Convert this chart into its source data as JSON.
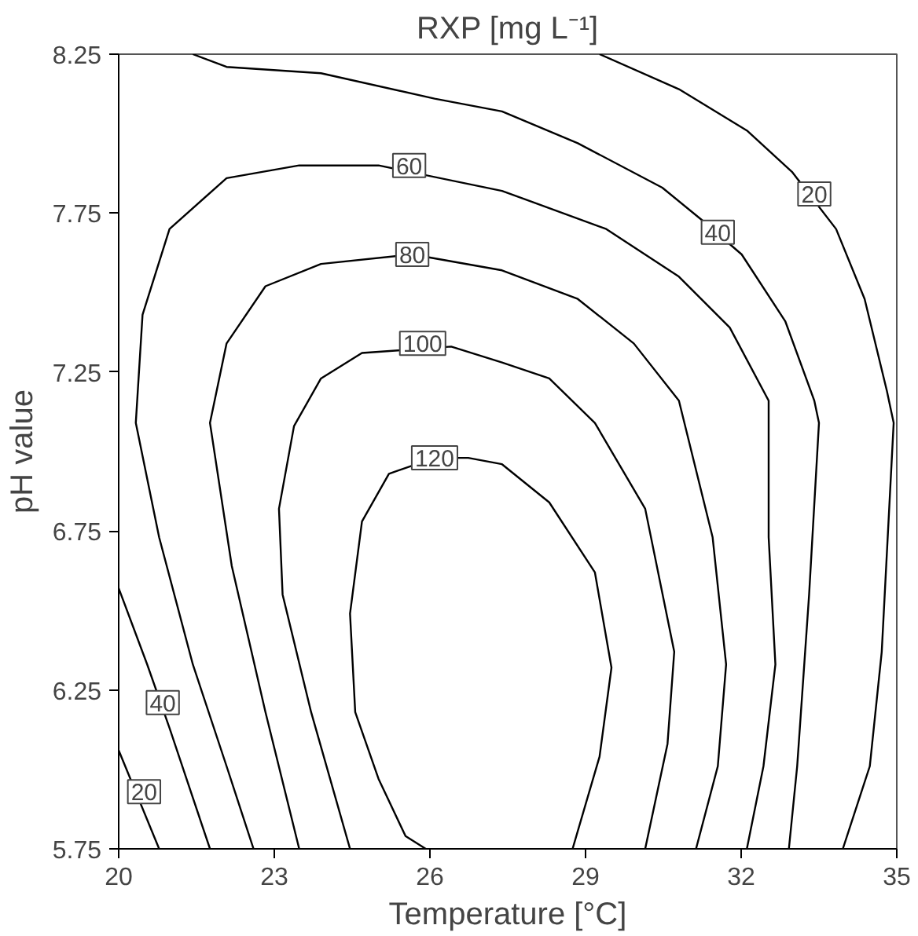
{
  "chart_data": {
    "type": "line",
    "title": "RXP [mg L⁻¹]",
    "xlabel": "Temperature [°C]",
    "ylabel": "pH value",
    "xlim": [
      20,
      35
    ],
    "ylim": [
      5.75,
      8.25
    ],
    "xticks": [
      20,
      23,
      26,
      29,
      32,
      35
    ],
    "yticks": [
      5.75,
      6.25,
      6.75,
      7.25,
      7.75,
      8.25
    ],
    "grid": false,
    "series": [
      {
        "color": "#000000",
        "x": [
          25.92,
          25.53,
          25.01,
          24.56,
          24.46,
          24.69,
          25.21,
          26.09,
          26.74,
          27.39,
          28.3,
          29.18,
          29.5,
          29.27,
          28.75
        ],
        "values": [
          5.75,
          5.79,
          5.97,
          6.18,
          6.49,
          6.78,
          6.93,
          6.98,
          6.98,
          6.96,
          6.84,
          6.62,
          6.32,
          6.04,
          5.75
        ]
      },
      {
        "color": "#000000",
        "x": [
          24.46,
          23.71,
          23.16,
          23.09,
          23.38,
          23.9,
          24.69,
          26.41,
          27.39,
          28.3,
          29.18,
          30.15,
          30.71,
          30.58,
          30.15
        ],
        "values": [
          5.75,
          6.18,
          6.55,
          6.82,
          7.08,
          7.23,
          7.31,
          7.33,
          7.28,
          7.23,
          7.09,
          6.82,
          6.37,
          6.08,
          5.75
        ]
      },
      {
        "color": "#000000",
        "x": [
          23.48,
          22.83,
          22.18,
          21.76,
          22.08,
          22.83,
          23.9,
          25.66,
          27.39,
          28.85,
          29.93,
          30.8,
          31.45,
          31.71,
          31.55,
          31.13
        ],
        "values": [
          5.75,
          6.18,
          6.64,
          7.09,
          7.34,
          7.52,
          7.59,
          7.62,
          7.57,
          7.48,
          7.34,
          7.16,
          6.73,
          6.33,
          6.01,
          5.75
        ]
      },
      {
        "color": "#000000",
        "x": [
          22.6,
          22.08,
          21.43,
          20.78,
          20.33,
          20.46,
          20.98,
          22.08,
          23.48,
          25.01,
          27.39,
          29.4,
          30.8,
          31.78,
          32.53,
          32.53,
          32.66,
          32.43,
          32.11
        ],
        "values": [
          5.75,
          6.01,
          6.33,
          6.73,
          7.09,
          7.43,
          7.7,
          7.86,
          7.9,
          7.9,
          7.82,
          7.7,
          7.55,
          7.39,
          7.16,
          6.73,
          6.33,
          6.01,
          5.75
        ]
      },
      {
        "color": "#000000",
        "x": [
          21.43,
          22.08,
          23.9,
          26.09,
          27.39,
          28.85,
          30.48,
          31.23,
          32.01,
          32.85,
          33.41,
          33.5,
          33.31,
          33.08,
          32.92
        ],
        "values": [
          8.25,
          8.21,
          8.19,
          8.11,
          8.07,
          7.97,
          7.83,
          7.73,
          7.62,
          7.41,
          7.16,
          7.09,
          6.55,
          6.01,
          5.75
        ]
      },
      {
        "color": "#000000",
        "x": [
          20.0,
          20.55,
          20.98,
          21.76
        ],
        "values": [
          6.57,
          6.33,
          6.13,
          5.75
        ]
      },
      {
        "color": "#000000",
        "x": [
          29.27,
          30.8,
          32.11,
          32.98,
          33.83,
          34.38,
          34.81,
          34.94,
          34.71,
          34.48,
          33.96
        ],
        "values": [
          8.25,
          8.14,
          8.01,
          7.88,
          7.7,
          7.48,
          7.19,
          7.09,
          6.37,
          6.01,
          5.75
        ]
      },
      {
        "color": "#000000",
        "x": [
          20.0,
          20.78
        ],
        "values": [
          6.06,
          5.75
        ]
      }
    ],
    "annotations": [
      {
        "text": "60",
        "x": 25.6,
        "y": 7.9
      },
      {
        "text": "80",
        "x": 25.66,
        "y": 7.62
      },
      {
        "text": "100",
        "x": 25.86,
        "y": 7.34
      },
      {
        "text": "120",
        "x": 26.09,
        "y": 6.98
      },
      {
        "text": "40",
        "x": 31.55,
        "y": 7.69
      },
      {
        "text": "20",
        "x": 33.41,
        "y": 7.81
      },
      {
        "text": "40",
        "x": 20.85,
        "y": 6.21
      },
      {
        "text": "20",
        "x": 20.49,
        "y": 5.93
      }
    ]
  }
}
